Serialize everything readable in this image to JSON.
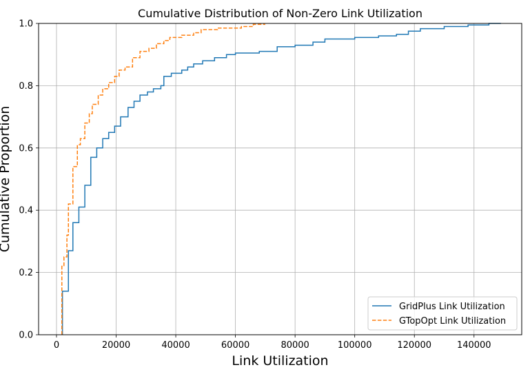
{
  "chart_data": {
    "type": "line",
    "title": "Cumulative Distribution of Non-Zero Link Utilization",
    "xlabel": "Link Utilization",
    "ylabel": "Cumulative Proportion",
    "xlim": [
      -6000,
      156000
    ],
    "ylim": [
      0,
      1.0
    ],
    "xticks": [
      0,
      20000,
      40000,
      60000,
      80000,
      100000,
      120000,
      140000
    ],
    "yticks": [
      0.0,
      0.2,
      0.4,
      0.6,
      0.8,
      1.0
    ],
    "xtick_labels": [
      "0",
      "20000",
      "40000",
      "60000",
      "80000",
      "100000",
      "120000",
      "140000"
    ],
    "ytick_labels": [
      "0.0",
      "0.2",
      "0.4",
      "0.6",
      "0.8",
      "1.0"
    ],
    "grid": true,
    "step": true,
    "legend_position": "lower-right",
    "series": [
      {
        "name": "GridPlus Link Utilization",
        "color": "#1f77b4",
        "style": "solid",
        "points": [
          [
            2000,
            0.0
          ],
          [
            2000,
            0.14
          ],
          [
            4000,
            0.14
          ],
          [
            4000,
            0.27
          ],
          [
            5500,
            0.27
          ],
          [
            5500,
            0.36
          ],
          [
            7500,
            0.36
          ],
          [
            7500,
            0.41
          ],
          [
            9500,
            0.41
          ],
          [
            9500,
            0.48
          ],
          [
            11500,
            0.48
          ],
          [
            11500,
            0.57
          ],
          [
            13500,
            0.57
          ],
          [
            13500,
            0.6
          ],
          [
            15500,
            0.6
          ],
          [
            15500,
            0.63
          ],
          [
            17500,
            0.63
          ],
          [
            17500,
            0.65
          ],
          [
            19500,
            0.65
          ],
          [
            19500,
            0.67
          ],
          [
            21500,
            0.67
          ],
          [
            21500,
            0.7
          ],
          [
            24000,
            0.7
          ],
          [
            24000,
            0.73
          ],
          [
            26000,
            0.73
          ],
          [
            26000,
            0.75
          ],
          [
            28000,
            0.75
          ],
          [
            28000,
            0.77
          ],
          [
            30500,
            0.77
          ],
          [
            30500,
            0.78
          ],
          [
            32500,
            0.78
          ],
          [
            32500,
            0.79
          ],
          [
            35000,
            0.79
          ],
          [
            35000,
            0.8
          ],
          [
            36000,
            0.8
          ],
          [
            36000,
            0.83
          ],
          [
            38500,
            0.83
          ],
          [
            38500,
            0.84
          ],
          [
            42000,
            0.84
          ],
          [
            42000,
            0.85
          ],
          [
            44000,
            0.85
          ],
          [
            44000,
            0.86
          ],
          [
            46000,
            0.86
          ],
          [
            46000,
            0.87
          ],
          [
            49000,
            0.87
          ],
          [
            49000,
            0.88
          ],
          [
            53000,
            0.88
          ],
          [
            53000,
            0.89
          ],
          [
            57000,
            0.89
          ],
          [
            57000,
            0.9
          ],
          [
            60000,
            0.9
          ],
          [
            60000,
            0.905
          ],
          [
            68000,
            0.905
          ],
          [
            68000,
            0.91
          ],
          [
            74000,
            0.91
          ],
          [
            74000,
            0.925
          ],
          [
            80000,
            0.925
          ],
          [
            80000,
            0.93
          ],
          [
            86000,
            0.93
          ],
          [
            86000,
            0.94
          ],
          [
            90000,
            0.94
          ],
          [
            90000,
            0.95
          ],
          [
            100000,
            0.95
          ],
          [
            100000,
            0.955
          ],
          [
            108000,
            0.955
          ],
          [
            108000,
            0.96
          ],
          [
            114000,
            0.96
          ],
          [
            114000,
            0.965
          ],
          [
            118000,
            0.965
          ],
          [
            118000,
            0.975
          ],
          [
            122000,
            0.975
          ],
          [
            122000,
            0.983
          ],
          [
            130000,
            0.983
          ],
          [
            130000,
            0.99
          ],
          [
            138000,
            0.99
          ],
          [
            138000,
            0.995
          ],
          [
            145000,
            0.995
          ],
          [
            145000,
            1.0
          ],
          [
            149000,
            1.0
          ]
        ]
      },
      {
        "name": "GTopOpt Link Utilization",
        "color": "#ff7f0e",
        "style": "dashed",
        "points": [
          [
            1800,
            0.0
          ],
          [
            1800,
            0.22
          ],
          [
            2500,
            0.22
          ],
          [
            2500,
            0.25
          ],
          [
            3500,
            0.25
          ],
          [
            3500,
            0.32
          ],
          [
            4000,
            0.32
          ],
          [
            4000,
            0.42
          ],
          [
            5500,
            0.42
          ],
          [
            5500,
            0.54
          ],
          [
            7000,
            0.54
          ],
          [
            7000,
            0.61
          ],
          [
            8000,
            0.61
          ],
          [
            8000,
            0.63
          ],
          [
            9500,
            0.63
          ],
          [
            9500,
            0.68
          ],
          [
            11000,
            0.68
          ],
          [
            11000,
            0.71
          ],
          [
            12000,
            0.71
          ],
          [
            12000,
            0.74
          ],
          [
            14000,
            0.74
          ],
          [
            14000,
            0.77
          ],
          [
            15500,
            0.77
          ],
          [
            15500,
            0.79
          ],
          [
            17500,
            0.79
          ],
          [
            17500,
            0.81
          ],
          [
            19500,
            0.81
          ],
          [
            19500,
            0.83
          ],
          [
            21000,
            0.83
          ],
          [
            21000,
            0.85
          ],
          [
            23000,
            0.85
          ],
          [
            23000,
            0.86
          ],
          [
            25500,
            0.86
          ],
          [
            25500,
            0.89
          ],
          [
            28000,
            0.89
          ],
          [
            28000,
            0.91
          ],
          [
            31000,
            0.91
          ],
          [
            31000,
            0.92
          ],
          [
            33500,
            0.92
          ],
          [
            33500,
            0.935
          ],
          [
            36000,
            0.935
          ],
          [
            36000,
            0.945
          ],
          [
            38000,
            0.945
          ],
          [
            38000,
            0.955
          ],
          [
            42000,
            0.955
          ],
          [
            42000,
            0.962
          ],
          [
            46000,
            0.962
          ],
          [
            46000,
            0.97
          ],
          [
            48500,
            0.97
          ],
          [
            48500,
            0.98
          ],
          [
            54000,
            0.98
          ],
          [
            54000,
            0.985
          ],
          [
            62000,
            0.985
          ],
          [
            62000,
            0.99
          ],
          [
            66000,
            0.99
          ],
          [
            66000,
            0.997
          ],
          [
            70000,
            0.997
          ]
        ]
      }
    ]
  }
}
